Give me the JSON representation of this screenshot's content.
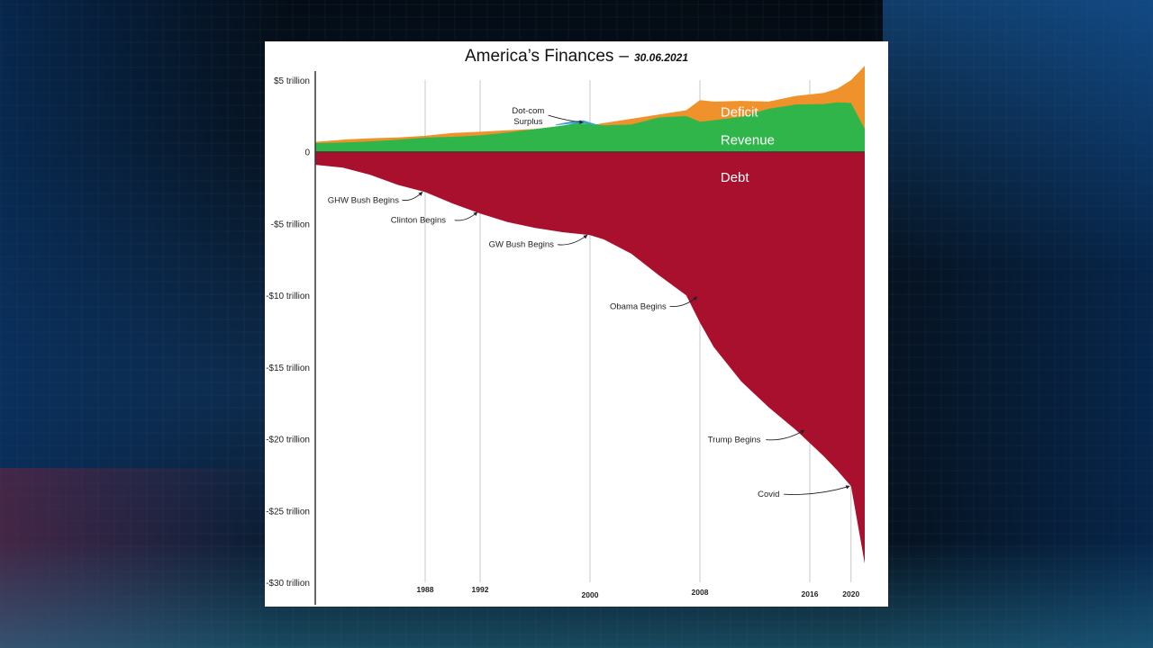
{
  "chart_data": {
    "type": "area",
    "title": "America’s Finances",
    "date": "30.06.2021",
    "title_separator": "–",
    "ylim": [
      -30,
      5
    ],
    "xlim": [
      1981,
      2021
    ],
    "y_ticks": [
      {
        "value": 5,
        "label": "$5 trillion"
      },
      {
        "value": 0,
        "label": "0"
      },
      {
        "value": -5,
        "label": "-$5 trillion"
      },
      {
        "value": -10,
        "label": "-$10 trillion"
      },
      {
        "value": -15,
        "label": "-$15 trillion"
      },
      {
        "value": -20,
        "label": "-$20 trillion"
      },
      {
        "value": -25,
        "label": "-$25 trillion"
      },
      {
        "value": -30,
        "label": "-$30 trillion"
      }
    ],
    "x_ticks": [
      {
        "value": 1989,
        "label": "1988"
      },
      {
        "value": 1993,
        "label": "1992"
      },
      {
        "value": 2001,
        "label": "2000"
      },
      {
        "value": 2009,
        "label": "2008"
      },
      {
        "value": 2017,
        "label": "2016"
      },
      {
        "value": 2020,
        "label": "2020"
      }
    ],
    "grid": "vertical lines at x ticks",
    "colors": {
      "deficit": "#f0922c",
      "revenue": "#2fb54a",
      "surplus": "#3aa0d8",
      "debt": "#a8102e",
      "axis": "#333333",
      "grid": "#c8c8c8"
    },
    "x": [
      1981,
      1983,
      1985,
      1987,
      1989,
      1991,
      1993,
      1995,
      1997,
      1999,
      2000,
      2001,
      2002,
      2004,
      2006,
      2008,
      2009,
      2010,
      2012,
      2014,
      2016,
      2018,
      2019,
      2020,
      2021
    ],
    "series": [
      {
        "name": "Revenue",
        "values": [
          0.6,
          0.65,
          0.73,
          0.85,
          0.99,
          1.05,
          1.15,
          1.35,
          1.58,
          1.83,
          2.0,
          1.95,
          1.85,
          1.9,
          2.4,
          2.5,
          2.1,
          2.2,
          2.45,
          3.0,
          3.3,
          3.33,
          3.45,
          3.4,
          1.6
        ]
      },
      {
        "name": "Deficit",
        "values": [
          0.7,
          0.85,
          0.95,
          1.0,
          1.12,
          1.32,
          1.4,
          1.5,
          1.6,
          1.8,
          1.8,
          1.85,
          2.0,
          2.3,
          2.6,
          2.9,
          3.6,
          3.5,
          3.55,
          3.5,
          3.9,
          4.1,
          4.4,
          5.0,
          6.0
        ]
      },
      {
        "name": "Debt",
        "values": [
          -0.9,
          -1.1,
          -1.6,
          -2.3,
          -2.8,
          -3.6,
          -4.3,
          -4.9,
          -5.3,
          -5.6,
          -5.7,
          -5.8,
          -6.1,
          -7.1,
          -8.6,
          -10.0,
          -11.9,
          -13.6,
          -16.0,
          -17.8,
          -19.4,
          -21.2,
          -22.2,
          -23.3,
          -28.7
        ]
      }
    ],
    "series_labels": [
      {
        "series": "Deficit",
        "label": "Deficit",
        "x": 2010.5,
        "y": 2.85
      },
      {
        "series": "Revenue",
        "label": "Revenue",
        "x": 2010.5,
        "y": 0.9
      },
      {
        "series": "Debt",
        "label": "Debt",
        "x": 2010.5,
        "y": -1.7
      }
    ],
    "annotations": [
      {
        "lines": [
          "Dot-com",
          "Surplus"
        ],
        "x": 1996.5,
        "y": 2.55,
        "arrow_to": [
          2000.5,
          2.05
        ]
      },
      {
        "lines": [
          "GHW Bush Begins"
        ],
        "x": 1984.5,
        "y": -3.3,
        "arrow_to": [
          1988.8,
          -2.8
        ]
      },
      {
        "lines": [
          "Clinton Begins"
        ],
        "x": 1988.5,
        "y": -4.7,
        "arrow_to": [
          1992.8,
          -4.2
        ]
      },
      {
        "lines": [
          "GW Bush Begins"
        ],
        "x": 1996.0,
        "y": -6.4,
        "arrow_to": [
          2000.8,
          -5.8
        ]
      },
      {
        "lines": [
          "Obama Begins"
        ],
        "x": 2004.5,
        "y": -10.7,
        "arrow_to": [
          2008.8,
          -10.1
        ]
      },
      {
        "lines": [
          "Trump Begins"
        ],
        "x": 2011.5,
        "y": -20.0,
        "arrow_to": [
          2016.6,
          -19.4
        ]
      },
      {
        "lines": [
          "Covid"
        ],
        "x": 2014.0,
        "y": -23.8,
        "arrow_to": [
          2019.9,
          -23.3
        ]
      }
    ]
  }
}
